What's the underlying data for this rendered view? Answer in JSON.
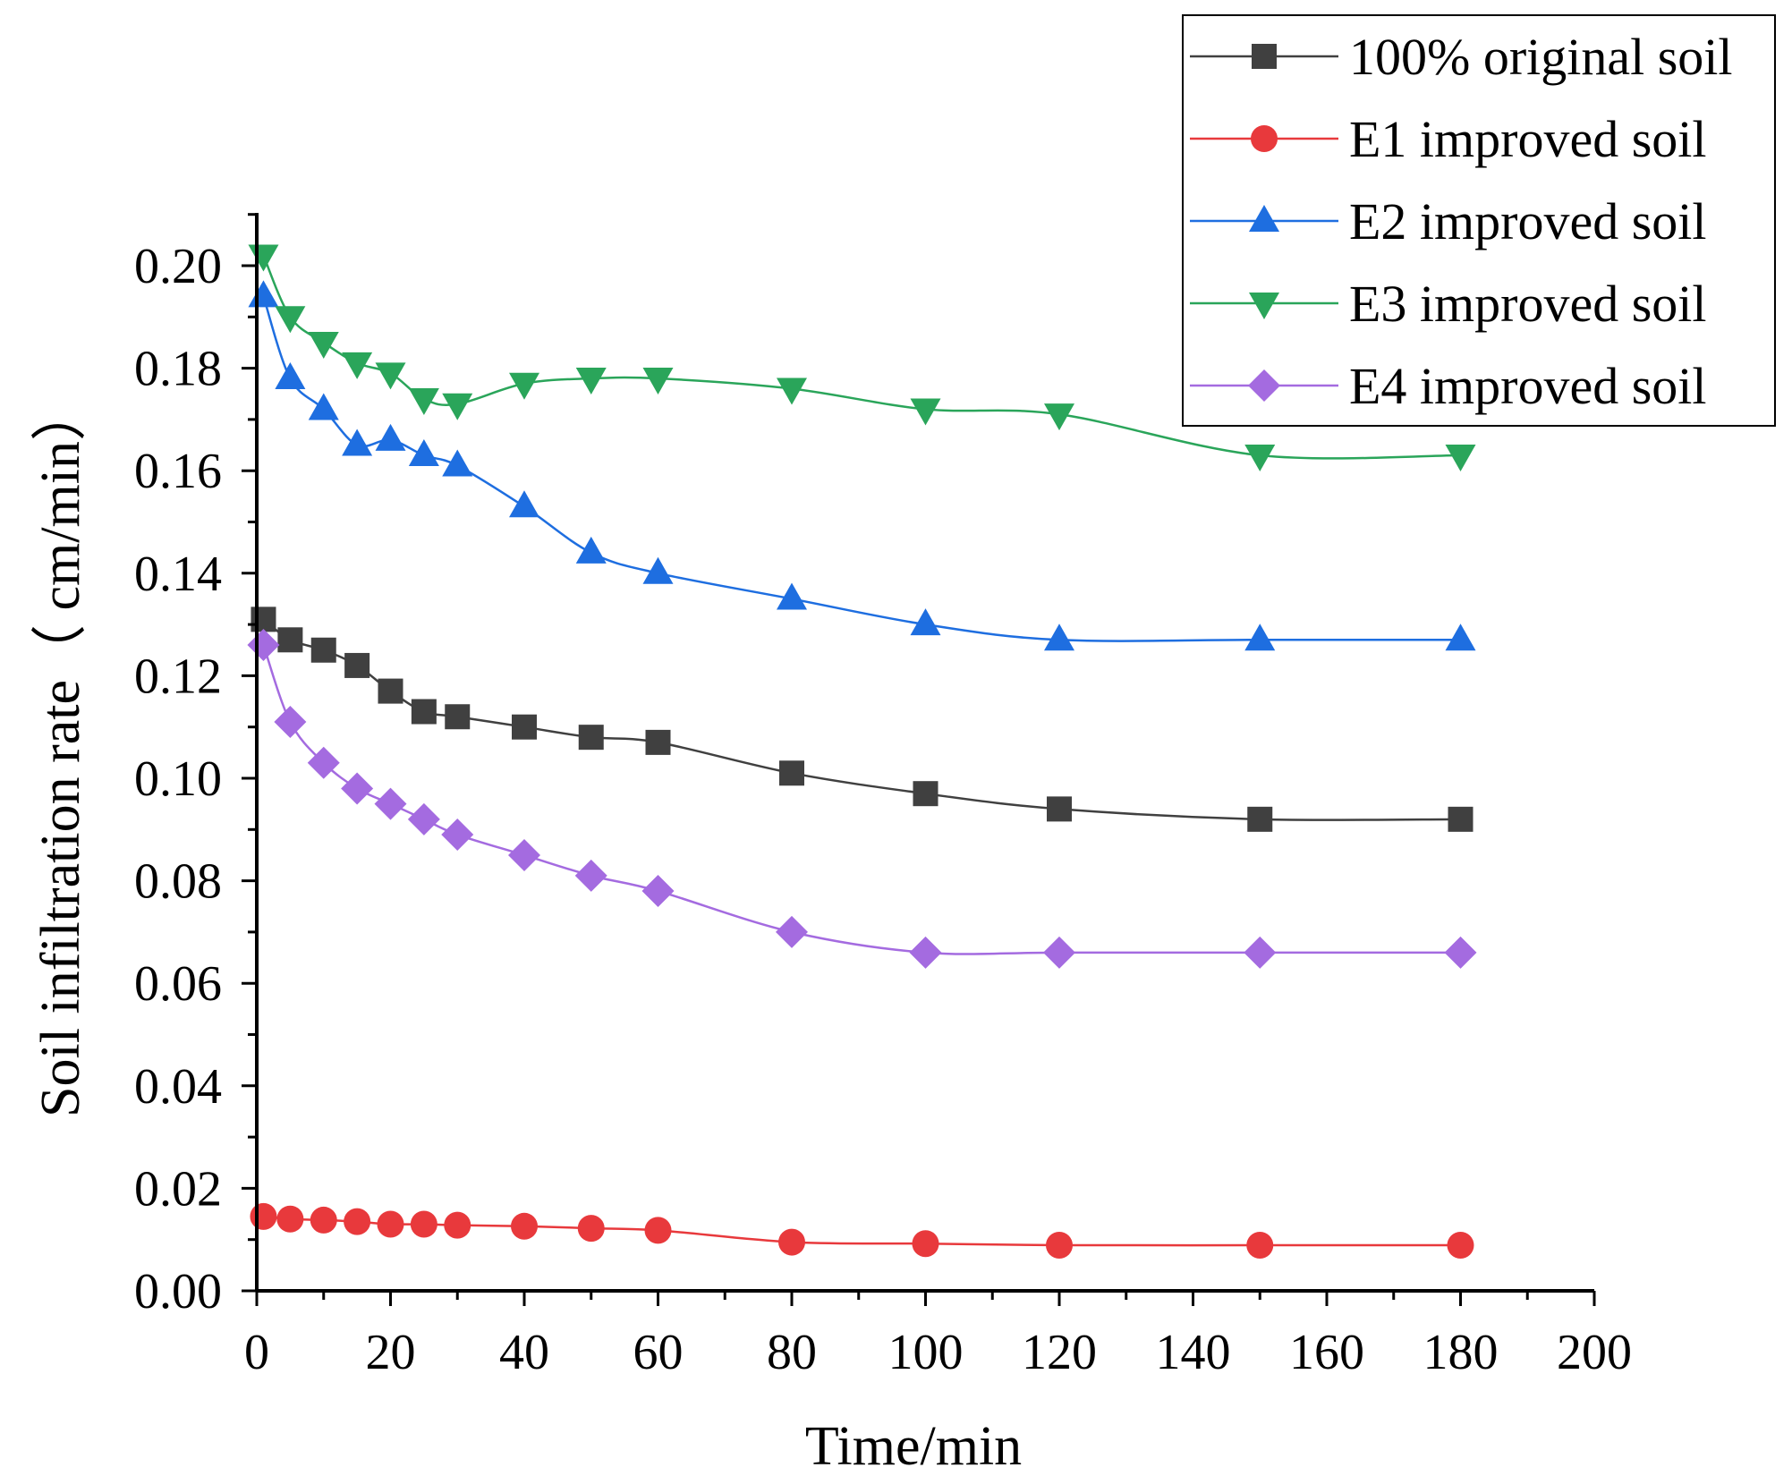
{
  "chart_data": {
    "type": "line",
    "title": "",
    "xlabel": "Time/min",
    "ylabel": "Soil infiltration rate（ cm/min）",
    "xlim": [
      0,
      200
    ],
    "ylim": [
      0,
      0.21
    ],
    "xticks": [
      "0",
      "20",
      "40",
      "60",
      "80",
      "100",
      "120",
      "140",
      "160",
      "180",
      "200"
    ],
    "yticks": [
      "0.00",
      "0.02",
      "0.04",
      "0.06",
      "0.08",
      "0.10",
      "0.12",
      "0.14",
      "0.16",
      "0.18",
      "0.20"
    ],
    "grid": false,
    "legend_position": "top-right",
    "x": [
      1,
      5,
      10,
      15,
      20,
      25,
      30,
      40,
      50,
      60,
      80,
      100,
      120,
      150,
      180
    ],
    "series": [
      {
        "name": "100% original soil",
        "color": "#404040",
        "marker": "square",
        "values": [
          0.131,
          0.127,
          0.125,
          0.122,
          0.117,
          0.113,
          0.112,
          0.11,
          0.108,
          0.107,
          0.101,
          0.097,
          0.094,
          0.092,
          0.092
        ]
      },
      {
        "name": "E1 improved soil",
        "color": "#e8393c",
        "marker": "circle",
        "values": [
          0.0145,
          0.014,
          0.0138,
          0.0135,
          0.013,
          0.013,
          0.0128,
          0.0126,
          0.0122,
          0.0118,
          0.0095,
          0.0092,
          0.0089,
          0.0089,
          0.0089
        ]
      },
      {
        "name": "E2 improved soil",
        "color": "#1e6ee0",
        "marker": "triangle-up",
        "values": [
          0.194,
          0.178,
          0.172,
          0.165,
          0.166,
          0.163,
          0.161,
          0.153,
          0.144,
          0.14,
          0.135,
          0.13,
          0.127,
          0.127,
          0.127
        ]
      },
      {
        "name": "E3 improved soil",
        "color": "#2aa55a",
        "marker": "triangle-down",
        "values": [
          0.202,
          0.19,
          0.185,
          0.181,
          0.179,
          0.174,
          0.173,
          0.177,
          0.178,
          0.178,
          0.176,
          0.172,
          0.171,
          0.163,
          0.163
        ]
      },
      {
        "name": "E4 improved soil",
        "color": "#a46be0",
        "marker": "diamond",
        "values": [
          0.126,
          0.111,
          0.103,
          0.098,
          0.095,
          0.092,
          0.089,
          0.085,
          0.081,
          0.078,
          0.07,
          0.066,
          0.066,
          0.066,
          0.066
        ]
      }
    ]
  }
}
